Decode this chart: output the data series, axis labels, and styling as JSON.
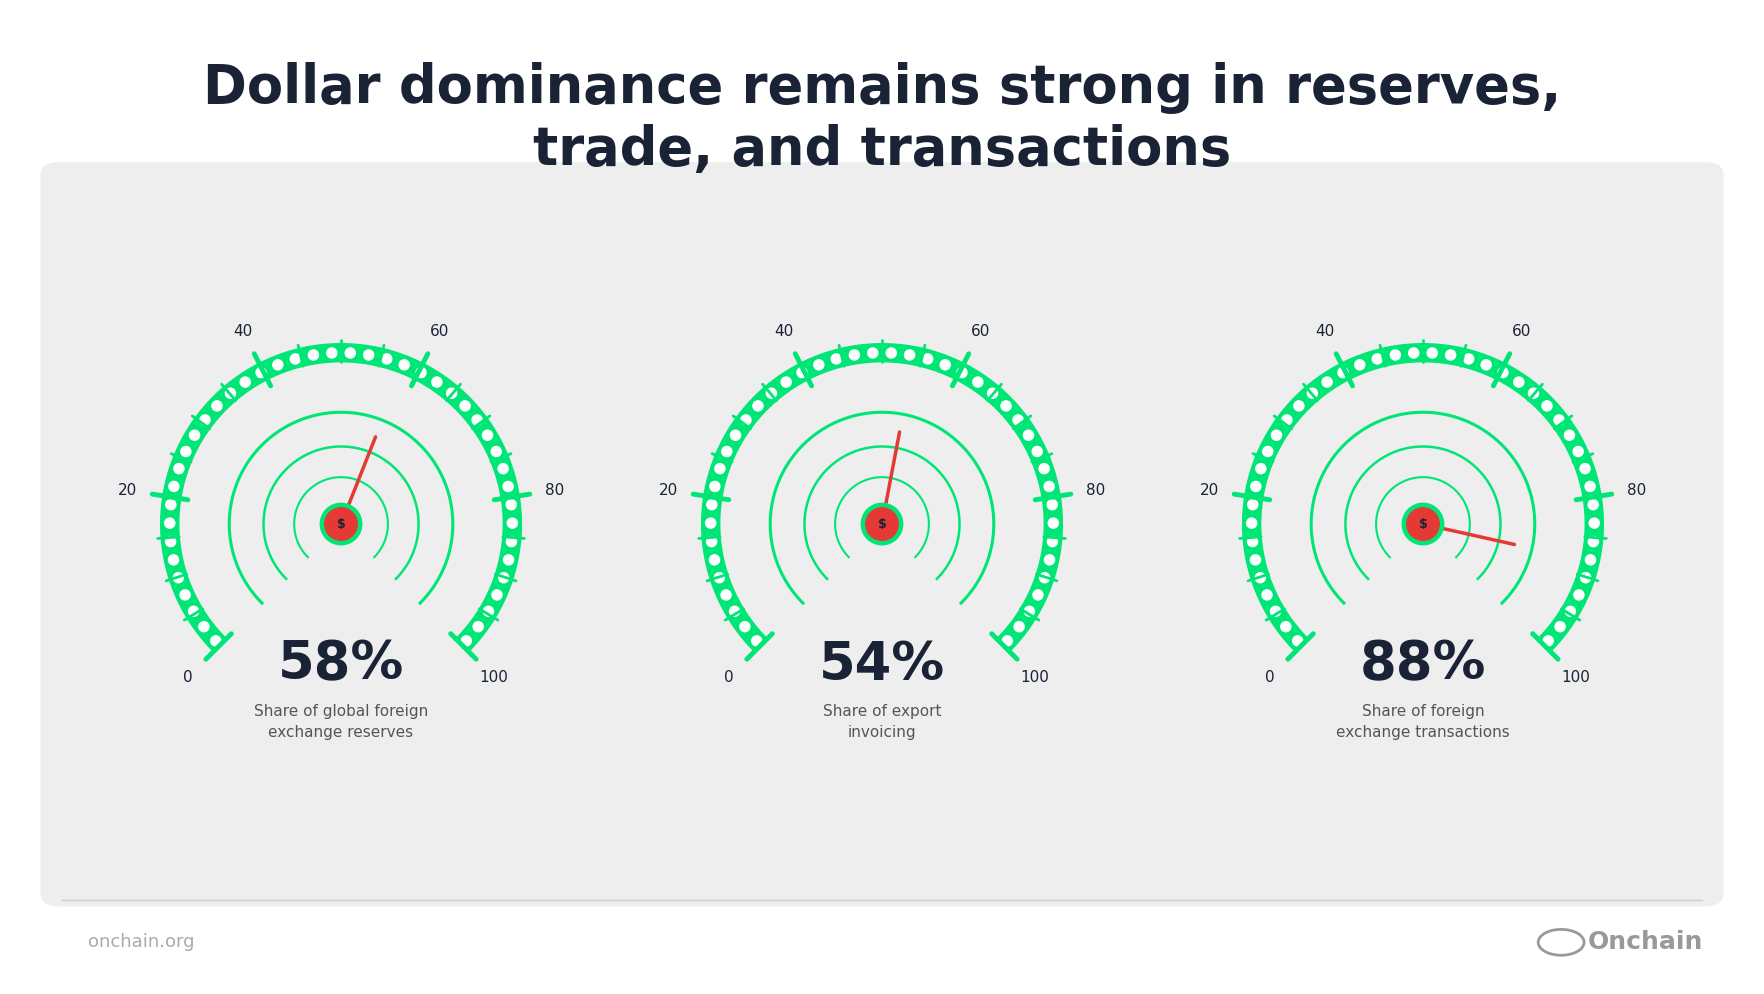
{
  "title": "Dollar dominance remains strong in reserves,\ntrade, and transactions",
  "title_color": "#1a2335",
  "background_color": "#ffffff",
  "panel_color": "#eeeeee",
  "gauges": [
    {
      "value": 58,
      "label_big": "58%",
      "label_small": "Share of global foreign\nexchange reserves"
    },
    {
      "value": 54,
      "label_big": "54%",
      "label_small": "Share of export\ninvoicing"
    },
    {
      "value": 88,
      "label_big": "88%",
      "label_small": "Share of foreign\nexchange transactions"
    }
  ],
  "gauge_green": "#00e676",
  "needle_red": "#e53935",
  "hub_green": "#00e676",
  "label_color": "#1a2335",
  "desc_color": "#555555",
  "footer_left": "onchain.org",
  "footer_right": "Onchain",
  "footer_color": "#aaaaaa",
  "tick_labels": [
    "0",
    "20",
    "40",
    "60",
    "80",
    "100"
  ],
  "tick_values": [
    0,
    20,
    40,
    60,
    80,
    100
  ]
}
